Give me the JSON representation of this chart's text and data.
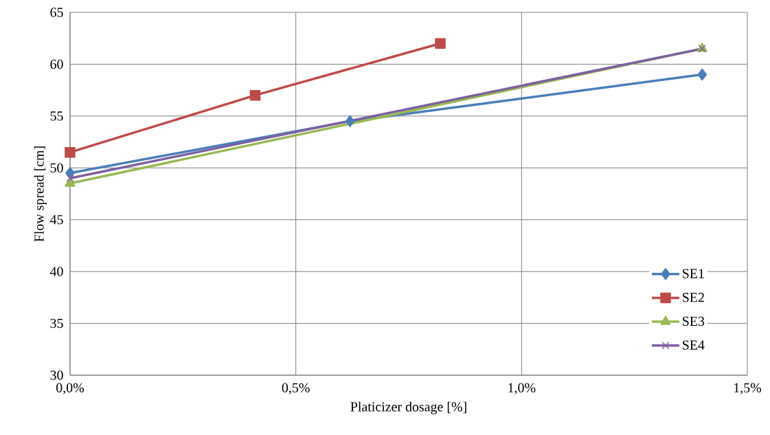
{
  "chart_data": {
    "type": "line",
    "xlabel": "Platicizer dosage [%]",
    "ylabel": "Flow spread [cm]",
    "xlim": [
      0,
      1.5
    ],
    "ylim": [
      30,
      65
    ],
    "xticks": [
      {
        "value": 0,
        "label": "0,0%"
      },
      {
        "value": 0.5,
        "label": "0,5%"
      },
      {
        "value": 1.0,
        "label": "1,0%"
      },
      {
        "value": 1.5,
        "label": "1,5%"
      }
    ],
    "yticks": [
      30,
      35,
      40,
      45,
      50,
      55,
      60,
      65
    ],
    "grid": true,
    "legend": "bottom right",
    "line_style": "solid",
    "series": [
      {
        "name": "SE1",
        "color": "#4a7ebb",
        "marker": "diamond",
        "x": [
          0,
          0.62,
          1.4
        ],
        "values": [
          49.5,
          54.5,
          59
        ]
      },
      {
        "name": "SE2",
        "color": "#be4b48",
        "marker": "square",
        "x": [
          0,
          0.41,
          0.82
        ],
        "values": [
          51.5,
          57,
          62
        ]
      },
      {
        "name": "SE3",
        "color": "#98b954",
        "marker": "triangle",
        "x": [
          0,
          1.4
        ],
        "values": [
          48.5,
          61.5
        ]
      },
      {
        "name": "SE4",
        "color": "#7d60a0",
        "marker": "cross",
        "x": [
          0,
          1.4
        ],
        "values": [
          49,
          61.5
        ]
      }
    ]
  }
}
